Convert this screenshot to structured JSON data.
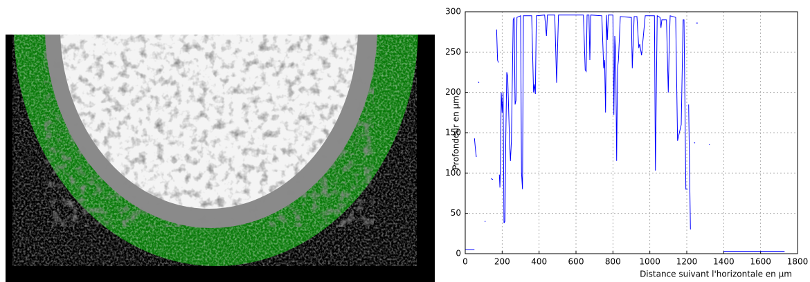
{
  "chart_data": {
    "type": "line",
    "xlabel": "Distance suivant l'horizontale en µm",
    "ylabel": "Profondeur en µm",
    "x": [
      0,
      50,
      null,
      50,
      55,
      60,
      null,
      70,
      75,
      null,
      105,
      110,
      null,
      140,
      150,
      null,
      170,
      175,
      180,
      null,
      185,
      188,
      190,
      195,
      200,
      205,
      210,
      215,
      220,
      225,
      230,
      240,
      245,
      250,
      260,
      265,
      270,
      275,
      280,
      300,
      305,
      310,
      315,
      360,
      370,
      375,
      380,
      385,
      430,
      440,
      445,
      485,
      495,
      505,
      640,
      650,
      655,
      660,
      670,
      675,
      680,
      740,
      750,
      755,
      760,
      765,
      770,
      775,
      800,
      805,
      810,
      815,
      820,
      825,
      830,
      840,
      900,
      905,
      915,
      930,
      940,
      945,
      955,
      965,
      975,
      1025,
      1030,
      1040,
      1055,
      1060,
      1065,
      1090,
      1100,
      1105,
      1110,
      1140,
      1150,
      1160,
      1170,
      1180,
      1185,
      1195,
      1205,
      null,
      1210,
      1220,
      null,
      1240,
      1245,
      null,
      1250,
      1260,
      null,
      1320,
      1325,
      null,
      1400,
      1730
    ],
    "series": [
      {
        "color": "#0000ff",
        "values": [
          5,
          5,
          null,
          143,
          130,
          120,
          null,
          213,
          212,
          null,
          40,
          40,
          null,
          93,
          92,
          null,
          278,
          240,
          237,
          null,
          98,
          82,
          100,
          200,
          175,
          200,
          38,
          40,
          150,
          225,
          220,
          140,
          115,
          140,
          290,
          293,
          185,
          190,
          293,
          295,
          100,
          80,
          295,
          295,
          200,
          210,
          198,
          295,
          296,
          270,
          296,
          296,
          212,
          296,
          296,
          228,
          226,
          296,
          296,
          240,
          296,
          295,
          230,
          240,
          175,
          296,
          265,
          296,
          296,
          172,
          270,
          250,
          115,
          230,
          240,
          294,
          293,
          230,
          294,
          294,
          255,
          260,
          246,
          270,
          295,
          295,
          103,
          295,
          293,
          280,
          290,
          290,
          200,
          260,
          295,
          293,
          140,
          150,
          160,
          290,
          290,
          80,
          80,
          null,
          185,
          30,
          null,
          138,
          137,
          null,
          286,
          286,
          null,
          135,
          135,
          null,
          3,
          3
        ]
      }
    ],
    "xlim": [
      0,
      1800
    ],
    "ylim": [
      0,
      300
    ],
    "xticks": [
      0,
      200,
      400,
      600,
      800,
      1000,
      1200,
      1400,
      1600,
      1800
    ],
    "yticks": [
      0,
      50,
      100,
      150,
      200,
      250,
      300
    ],
    "grid": true
  }
}
